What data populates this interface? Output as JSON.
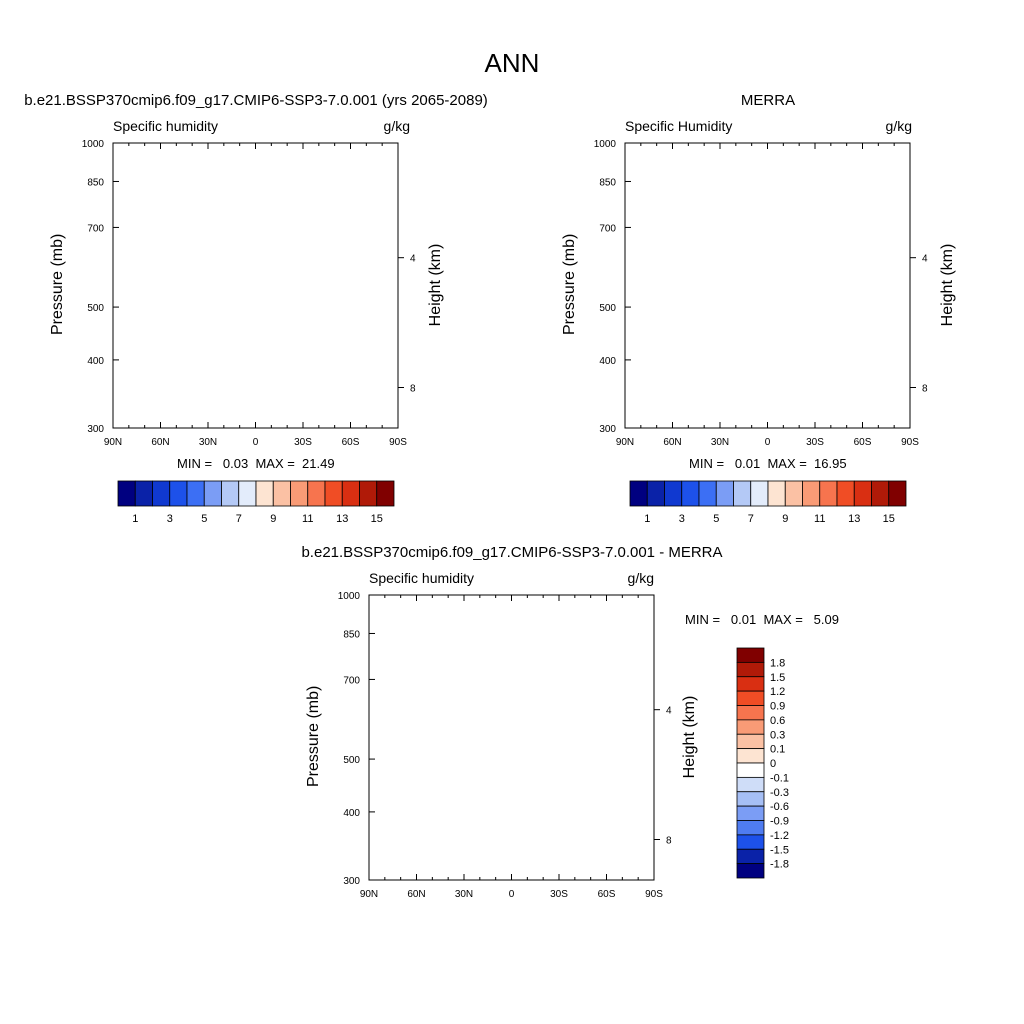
{
  "page_title": "ANN",
  "chart_data": [
    {
      "type": "heatmap",
      "title": "b.e21.BSSP370cmip6.f09_g17.CMIP6-SSP3-7.0.001 (yrs 2065-2089)",
      "variable_label": "Specific humidity",
      "units": "g/kg",
      "ylabel": "Pressure (mb)",
      "y2label": "Height (km)",
      "x_ticks": [
        "90N",
        "60N",
        "30N",
        "0",
        "30S",
        "60S",
        "90S"
      ],
      "y_ticks": [
        "300",
        "400",
        "500",
        "700",
        "850",
        "1000"
      ],
      "y2_ticks": [
        "8",
        "4"
      ],
      "ylim": [
        1000,
        300
      ],
      "y_scale": "log",
      "min_label": "MIN =",
      "min_value": "0.03",
      "max_label": "MAX =",
      "max_value": "21.49",
      "peak_value": 21.49,
      "colorbar": {
        "orientation": "horizontal",
        "labels": [
          "1",
          "3",
          "5",
          "7",
          "9",
          "11",
          "13",
          "15"
        ],
        "colors": [
          "#000080",
          "#0a22a8",
          "#1039d0",
          "#1d51ea",
          "#3c6ff4",
          "#7b9df5",
          "#b4c9f6",
          "#e3ecfb",
          "#fde4d2",
          "#fbc1a4",
          "#f99b76",
          "#f7744e",
          "#f04d25",
          "#d92f12",
          "#b01a08",
          "#800000"
        ]
      }
    },
    {
      "type": "heatmap",
      "title": "MERRA",
      "variable_label": "Specific Humidity",
      "units": "g/kg",
      "ylabel": "Pressure (mb)",
      "y2label": "Height (km)",
      "x_ticks": [
        "90N",
        "60N",
        "30N",
        "0",
        "30S",
        "60S",
        "90S"
      ],
      "y_ticks": [
        "300",
        "400",
        "500",
        "700",
        "850",
        "1000"
      ],
      "y2_ticks": [
        "8",
        "4"
      ],
      "ylim": [
        1000,
        300
      ],
      "y_scale": "log",
      "min_label": "MIN =",
      "min_value": "0.01",
      "max_label": "MAX =",
      "max_value": "16.95",
      "peak_value": 16.95,
      "colorbar": {
        "orientation": "horizontal",
        "labels": [
          "1",
          "3",
          "5",
          "7",
          "9",
          "11",
          "13",
          "15"
        ],
        "colors": [
          "#000080",
          "#0a22a8",
          "#1039d0",
          "#1d51ea",
          "#3c6ff4",
          "#7b9df5",
          "#b4c9f6",
          "#e3ecfb",
          "#fde4d2",
          "#fbc1a4",
          "#f99b76",
          "#f7744e",
          "#f04d25",
          "#d92f12",
          "#b01a08",
          "#800000"
        ]
      }
    },
    {
      "type": "heatmap",
      "title": "b.e21.BSSP370cmip6.f09_g17.CMIP6-SSP3-7.0.001 - MERRA",
      "variable_label": "Specific humidity",
      "units": "g/kg",
      "ylabel": "Pressure (mb)",
      "y2label": "Height (km)",
      "x_ticks": [
        "90N",
        "60N",
        "30N",
        "0",
        "30S",
        "60S",
        "90S"
      ],
      "y_ticks": [
        "300",
        "400",
        "500",
        "700",
        "850",
        "1000"
      ],
      "y2_ticks": [
        "8",
        "4"
      ],
      "ylim": [
        1000,
        300
      ],
      "y_scale": "log",
      "min_label": "MIN =",
      "min_value": "0.01",
      "max_label": "MAX =",
      "max_value": "5.09",
      "colorbar": {
        "orientation": "vertical",
        "labels": [
          "1.8",
          "1.5",
          "1.2",
          "0.9",
          "0.6",
          "0.3",
          "0.1",
          "0",
          "-0.1",
          "-0.3",
          "-0.6",
          "-0.9",
          "-1.2",
          "-1.5",
          "-1.8"
        ],
        "colors": [
          "#800000",
          "#b01a08",
          "#d92f12",
          "#f04d25",
          "#f7744e",
          "#f99b76",
          "#fbc1a4",
          "#fde4d2",
          "#ffffff",
          "#cfddf8",
          "#a6bff5",
          "#7b9df5",
          "#4f7cf1",
          "#1d51ea",
          "#0a22a8",
          "#000080"
        ]
      }
    }
  ]
}
